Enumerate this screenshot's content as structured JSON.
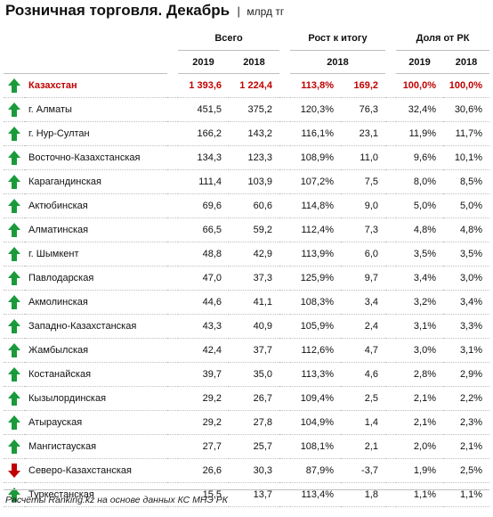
{
  "header": {
    "title": "Розничная торговля. Декабрь",
    "separator": "|",
    "unit": "млрд тг"
  },
  "footer": {
    "note": "Расчёты Ranking.kz на основе данных КС МНЭ РК"
  },
  "colors": {
    "up": "#1a9a3a",
    "down": "#c00000",
    "total": "#c00000",
    "grid": "#bfbfbf"
  },
  "chart_data": {
    "type": "table",
    "title": "Розничная торговля. Декабрь",
    "unit": "млрд тг",
    "column_groups": [
      "Всего",
      "Рост к итогу",
      "Доля от РК"
    ],
    "column_years": [
      "2019",
      "2018",
      "2018",
      "2019",
      "2018"
    ],
    "rows": [
      {
        "region": "Казахстан",
        "trend": "up",
        "total_2019": "1 393,6",
        "total_2018": "1 224,4",
        "growth_pct": "113,8%",
        "growth_abs": "169,2",
        "share_2019": "100,0%",
        "share_2018": "100,0%",
        "highlight": true
      },
      {
        "region": "г. Алматы",
        "trend": "up",
        "total_2019": "451,5",
        "total_2018": "375,2",
        "growth_pct": "120,3%",
        "growth_abs": "76,3",
        "share_2019": "32,4%",
        "share_2018": "30,6%"
      },
      {
        "region": "г. Нур-Султан",
        "trend": "up",
        "total_2019": "166,2",
        "total_2018": "143,2",
        "growth_pct": "116,1%",
        "growth_abs": "23,1",
        "share_2019": "11,9%",
        "share_2018": "11,7%"
      },
      {
        "region": "Восточно-Казахстанская",
        "trend": "up",
        "total_2019": "134,3",
        "total_2018": "123,3",
        "growth_pct": "108,9%",
        "growth_abs": "11,0",
        "share_2019": "9,6%",
        "share_2018": "10,1%"
      },
      {
        "region": "Карагандинская",
        "trend": "up",
        "total_2019": "111,4",
        "total_2018": "103,9",
        "growth_pct": "107,2%",
        "growth_abs": "7,5",
        "share_2019": "8,0%",
        "share_2018": "8,5%"
      },
      {
        "region": "Актюбинская",
        "trend": "up",
        "total_2019": "69,6",
        "total_2018": "60,6",
        "growth_pct": "114,8%",
        "growth_abs": "9,0",
        "share_2019": "5,0%",
        "share_2018": "5,0%"
      },
      {
        "region": "Алматинская",
        "trend": "up",
        "total_2019": "66,5",
        "total_2018": "59,2",
        "growth_pct": "112,4%",
        "growth_abs": "7,3",
        "share_2019": "4,8%",
        "share_2018": "4,8%"
      },
      {
        "region": "г. Шымкент",
        "trend": "up",
        "total_2019": "48,8",
        "total_2018": "42,9",
        "growth_pct": "113,9%",
        "growth_abs": "6,0",
        "share_2019": "3,5%",
        "share_2018": "3,5%"
      },
      {
        "region": "Павлодарская",
        "trend": "up",
        "total_2019": "47,0",
        "total_2018": "37,3",
        "growth_pct": "125,9%",
        "growth_abs": "9,7",
        "share_2019": "3,4%",
        "share_2018": "3,0%"
      },
      {
        "region": "Акмолинская",
        "trend": "up",
        "total_2019": "44,6",
        "total_2018": "41,1",
        "growth_pct": "108,3%",
        "growth_abs": "3,4",
        "share_2019": "3,2%",
        "share_2018": "3,4%"
      },
      {
        "region": "Западно-Казахстанская",
        "trend": "up",
        "total_2019": "43,3",
        "total_2018": "40,9",
        "growth_pct": "105,9%",
        "growth_abs": "2,4",
        "share_2019": "3,1%",
        "share_2018": "3,3%"
      },
      {
        "region": "Жамбылская",
        "trend": "up",
        "total_2019": "42,4",
        "total_2018": "37,7",
        "growth_pct": "112,6%",
        "growth_abs": "4,7",
        "share_2019": "3,0%",
        "share_2018": "3,1%"
      },
      {
        "region": "Костанайская",
        "trend": "up",
        "total_2019": "39,7",
        "total_2018": "35,0",
        "growth_pct": "113,3%",
        "growth_abs": "4,6",
        "share_2019": "2,8%",
        "share_2018": "2,9%"
      },
      {
        "region": "Кызылординская",
        "trend": "up",
        "total_2019": "29,2",
        "total_2018": "26,7",
        "growth_pct": "109,4%",
        "growth_abs": "2,5",
        "share_2019": "2,1%",
        "share_2018": "2,2%"
      },
      {
        "region": "Атырауская",
        "trend": "up",
        "total_2019": "29,2",
        "total_2018": "27,8",
        "growth_pct": "104,9%",
        "growth_abs": "1,4",
        "share_2019": "2,1%",
        "share_2018": "2,3%"
      },
      {
        "region": "Мангистауская",
        "trend": "up",
        "total_2019": "27,7",
        "total_2018": "25,7",
        "growth_pct": "108,1%",
        "growth_abs": "2,1",
        "share_2019": "2,0%",
        "share_2018": "2,1%"
      },
      {
        "region": "Северо-Казахстанская",
        "trend": "down",
        "total_2019": "26,6",
        "total_2018": "30,3",
        "growth_pct": "87,9%",
        "growth_abs": "-3,7",
        "share_2019": "1,9%",
        "share_2018": "2,5%"
      },
      {
        "region": "Туркестанская",
        "trend": "up",
        "total_2019": "15,5",
        "total_2018": "13,7",
        "growth_pct": "113,4%",
        "growth_abs": "1,8",
        "share_2019": "1,1%",
        "share_2018": "1,1%"
      }
    ]
  }
}
